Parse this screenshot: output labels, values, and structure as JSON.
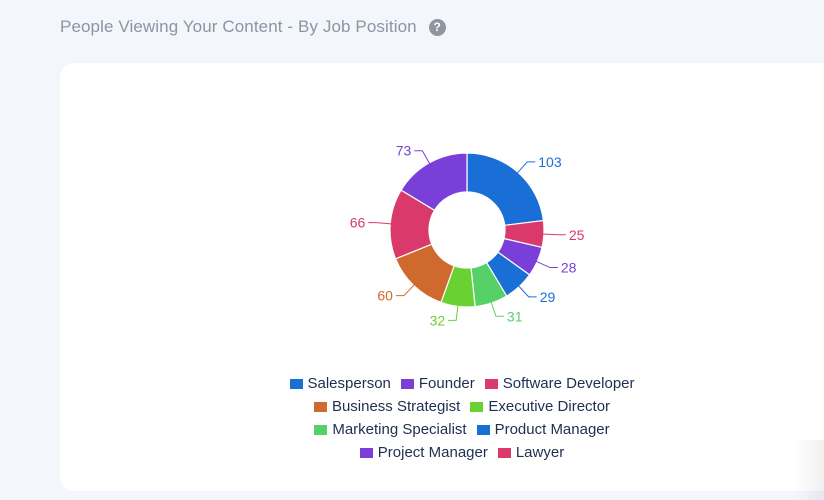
{
  "header": {
    "title": "People Viewing Your Content - By Job Position",
    "help_icon": "question-circle-icon"
  },
  "chart_data": {
    "type": "pie",
    "donut": true,
    "title": "",
    "legend_position": "bottom",
    "series": [
      {
        "name": "Salesperson",
        "value": 103,
        "color": "#1a6fd6"
      },
      {
        "name": "Software Developer",
        "value": 25,
        "color": "#d9396b"
      },
      {
        "name": "Founder",
        "value": 28,
        "color": "#7a3fd8"
      },
      {
        "name": "Product Manager",
        "value": 29,
        "color": "#1a6fd6"
      },
      {
        "name": "Marketing Specialist",
        "value": 31,
        "color": "#56d167"
      },
      {
        "name": "Executive Director",
        "value": 32,
        "color": "#6ad132"
      },
      {
        "name": "Business Strategist",
        "value": 60,
        "color": "#d0692e"
      },
      {
        "name": "Lawyer",
        "value": 66,
        "color": "#d9396b"
      },
      {
        "name": "Project Manager",
        "value": 73,
        "color": "#7a3fd8"
      }
    ],
    "legend_rows": [
      [
        {
          "name": "Salesperson",
          "color": "#1a6fd6"
        },
        {
          "name": "Founder",
          "color": "#7a3fd8"
        },
        {
          "name": "Software Developer",
          "color": "#d9396b"
        }
      ],
      [
        {
          "name": "Business Strategist",
          "color": "#d0692e"
        },
        {
          "name": "Executive Director",
          "color": "#6ad132"
        }
      ],
      [
        {
          "name": "Marketing Specialist",
          "color": "#56d167"
        },
        {
          "name": "Product Manager",
          "color": "#1a6fd6"
        }
      ],
      [
        {
          "name": "Project Manager",
          "color": "#7a3fd8"
        },
        {
          "name": "Lawyer",
          "color": "#d9396b"
        }
      ]
    ]
  }
}
